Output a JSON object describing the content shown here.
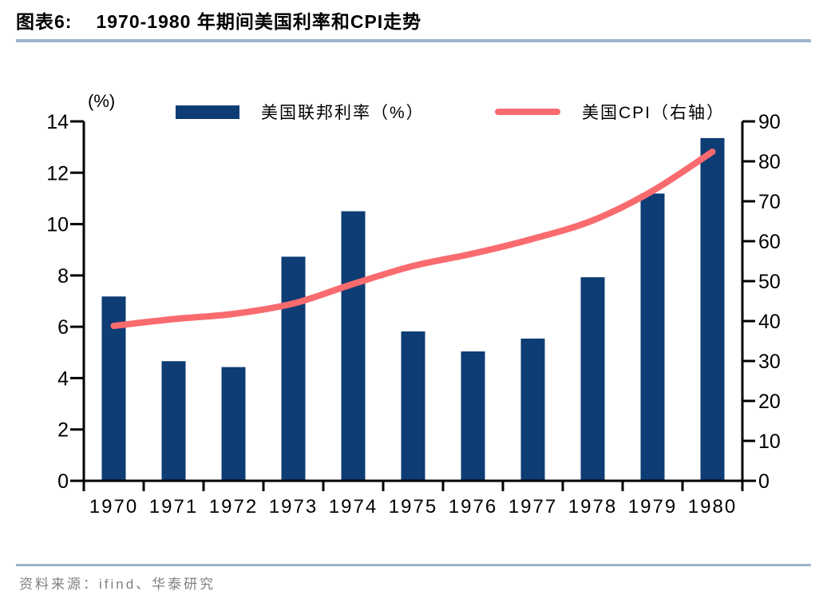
{
  "header": {
    "figure_label": "图表6:",
    "title": "1970-1980 年期间美国利率和CPI走势"
  },
  "footer": {
    "source": "资料来源：ifind、华泰研究"
  },
  "colors": {
    "bar": "#0e3c74",
    "line": "#f96b6e",
    "axis": "#000000",
    "rule": "#9db3cd",
    "footer_text": "#7f7f7f"
  },
  "chart_data": {
    "type": "combo_bar_line",
    "title": "1970-1980 年期间美国利率和CPI走势",
    "unit_label": "(%)",
    "legend_position": "top",
    "grid": false,
    "categories": [
      "1970",
      "1971",
      "1972",
      "1973",
      "1974",
      "1975",
      "1976",
      "1977",
      "1978",
      "1979",
      "1980"
    ],
    "series": [
      {
        "name": "美国联邦利率（%）",
        "type": "bar",
        "axis": "left",
        "color": "#0e3c74",
        "values": [
          7.18,
          4.66,
          4.43,
          8.73,
          10.5,
          5.82,
          5.04,
          5.54,
          7.93,
          11.19,
          13.35
        ]
      },
      {
        "name": "美国CPI（右轴）",
        "type": "line",
        "axis": "right",
        "color": "#f96b6e",
        "values": [
          38.8,
          40.5,
          41.8,
          44.4,
          49.3,
          53.8,
          56.9,
          60.6,
          65.2,
          72.6,
          82.4
        ]
      }
    ],
    "left_axis": {
      "min": 0,
      "max": 14,
      "step": 2,
      "tick_labels": [
        "0",
        "2",
        "4",
        "6",
        "8",
        "10",
        "12",
        "14"
      ]
    },
    "right_axis": {
      "min": 0,
      "max": 90,
      "step": 10,
      "tick_labels": [
        "0",
        "10",
        "20",
        "30",
        "40",
        "50",
        "60",
        "70",
        "80",
        "90"
      ]
    }
  }
}
